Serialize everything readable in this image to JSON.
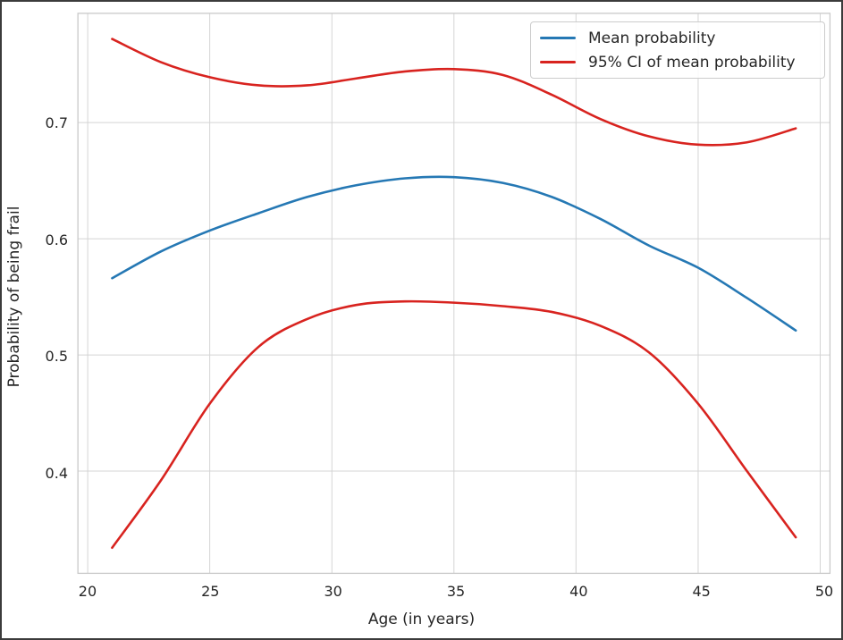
{
  "chart_data": {
    "type": "line",
    "title": "",
    "xlabel": "Age (in years)",
    "ylabel": "Probability of being frail",
    "x": [
      21,
      23,
      25,
      27,
      29,
      31,
      33,
      35,
      37,
      39,
      41,
      43,
      45,
      47,
      49
    ],
    "series": [
      {
        "name": "Mean probability",
        "color": "#2578b4",
        "values": [
          0.566,
          0.589,
          0.607,
          0.622,
          0.636,
          0.646,
          0.652,
          0.653,
          0.648,
          0.636,
          0.617,
          0.594,
          0.575,
          0.549,
          0.521
        ]
      },
      {
        "name": "95% CI upper bound",
        "color": "#d8231f",
        "values": [
          0.772,
          0.752,
          0.739,
          0.732,
          0.732,
          0.738,
          0.744,
          0.746,
          0.741,
          0.724,
          0.703,
          0.688,
          0.681,
          0.683,
          0.695
        ]
      },
      {
        "name": "95% CI lower bound",
        "color": "#d8231f",
        "values": [
          0.334,
          0.392,
          0.458,
          0.507,
          0.531,
          0.543,
          0.546,
          0.545,
          0.542,
          0.537,
          0.525,
          0.502,
          0.458,
          0.4,
          0.343
        ]
      }
    ],
    "legend": {
      "position": "upper right",
      "entries": [
        {
          "label": "Mean probability",
          "color": "#2578b4"
        },
        {
          "label": "95% CI of mean probability",
          "color": "#d8231f"
        }
      ]
    },
    "xticks": [
      20,
      25,
      30,
      35,
      40,
      45,
      50
    ],
    "yticks": [
      0.4,
      0.5,
      0.6,
      0.7
    ],
    "xlim": [
      19.6,
      50.4
    ],
    "ylim": [
      0.312,
      0.794
    ],
    "grid": true,
    "line_width": 2.6
  },
  "style": {
    "grid_color": "#d4d4d4",
    "spine_color": "#c9c9c9",
    "text_color": "#262626",
    "background": "#ffffff",
    "frame_border": "#3b3b3b"
  }
}
